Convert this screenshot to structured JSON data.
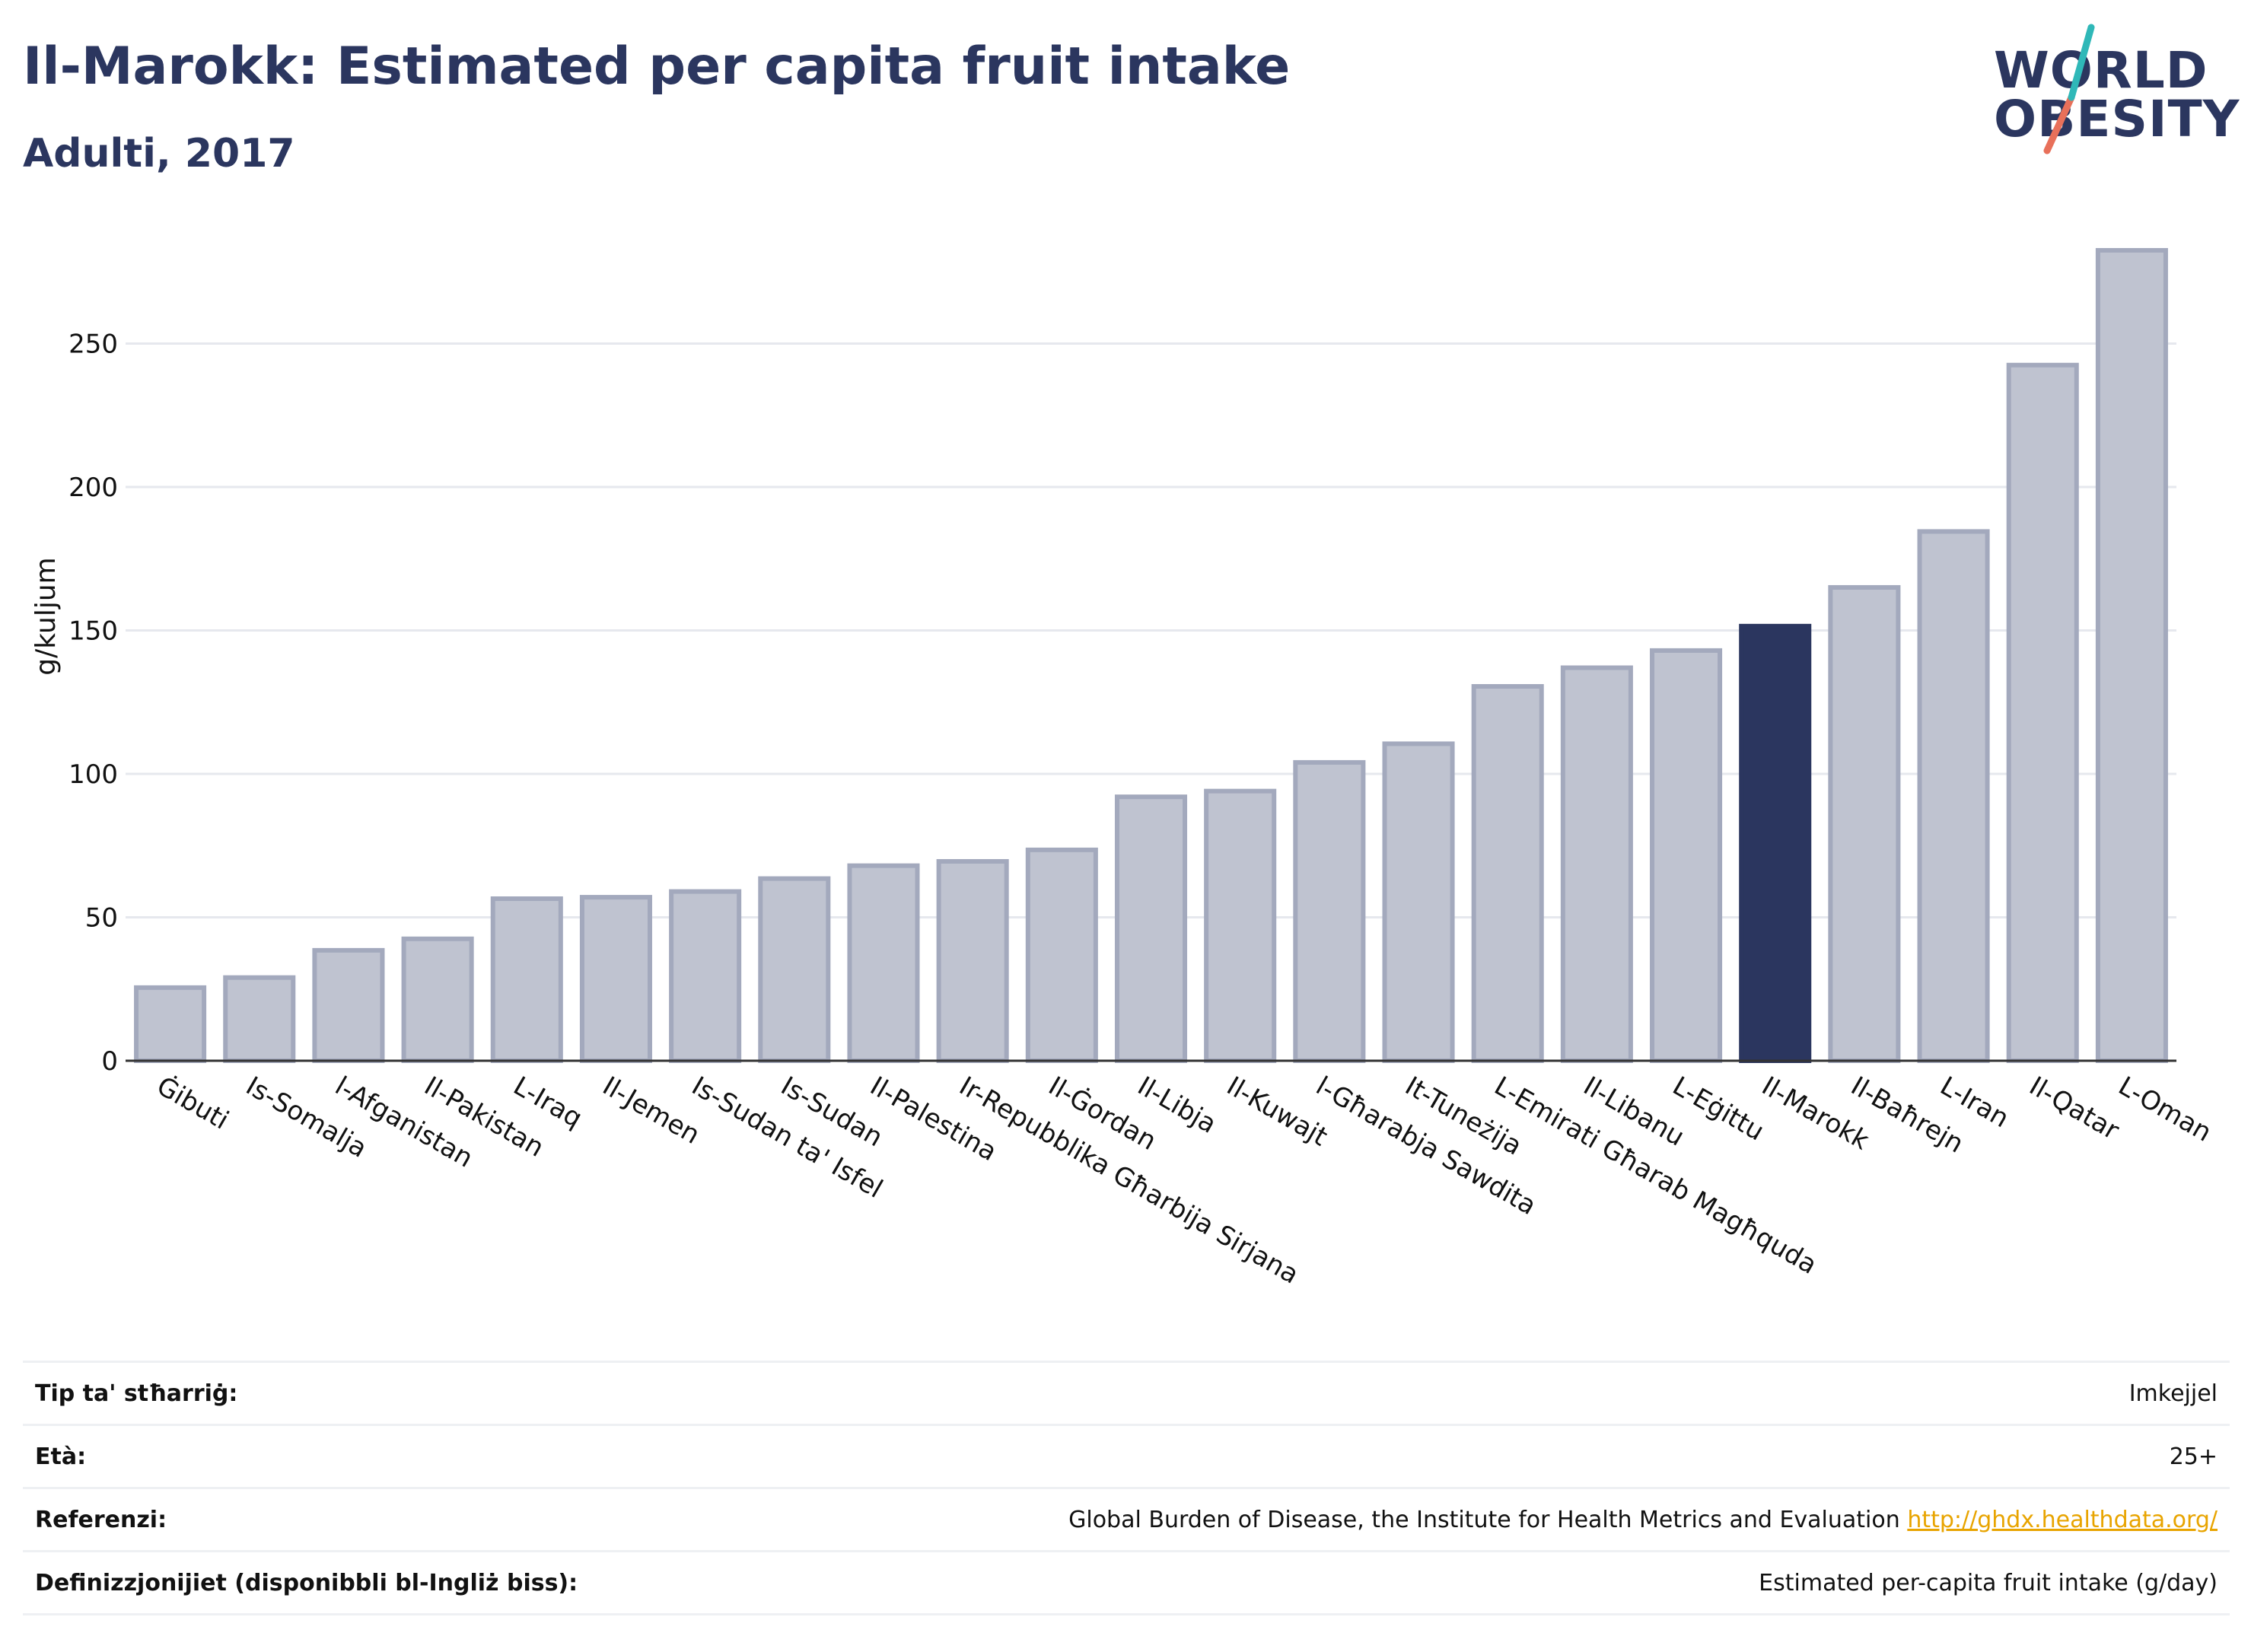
{
  "header": {
    "title": "Il-Marokk: Estimated per capita fruit intake",
    "subtitle": "Adulti, 2017"
  },
  "logo": {
    "line1": "WORLD",
    "line2": "OBESITY"
  },
  "colors": {
    "bar": "#bfc3d0",
    "bar_border": "#a3a9bd",
    "highlight": "#2b365f",
    "grid": "#e6e8ee",
    "text": "#111111",
    "link": "#e8a400",
    "logo_teal": "#2fb8b8",
    "logo_coral": "#e8705a"
  },
  "chart_data": {
    "type": "bar",
    "title": "Il-Marokk: Estimated per capita fruit intake",
    "subtitle": "Adulti, 2017",
    "ylabel": "g/kuljum",
    "xlabel": "",
    "ylim": [
      0,
      290
    ],
    "yticks": [
      0,
      50,
      100,
      150,
      200,
      250
    ],
    "grid": true,
    "highlight": "Il-Marokk",
    "categories": [
      "Ġibuti",
      "Is-Somalja",
      "l-Afganistan",
      "Il-Pakistan",
      "L-Iraq",
      "Il-Jemen",
      "Is-Sudan ta' Isfel",
      "Is-Sudan",
      "Il-Palestina",
      "Ir-Repubblika Għarbija Sirjana",
      "Il-Ġordan",
      "Il-Libja",
      "Il-Kuwajt",
      "l-Għarabja Sawdita",
      "It-Tuneżija",
      "L-Emirati Għarab Magħquda",
      "Il-Libanu",
      "L-Eġittu",
      "Il-Marokk",
      "Il-Baħrejn",
      "L-Iran",
      "Il-Qatar",
      "L-Oman"
    ],
    "values": [
      25.5,
      29,
      38.5,
      42.5,
      56.5,
      57,
      59,
      63.5,
      68,
      69.5,
      73.5,
      92,
      94,
      104,
      110.5,
      130.5,
      137,
      143,
      151.5,
      165,
      184.5,
      242.5,
      282.5
    ]
  },
  "info_table": [
    {
      "label": "Tip ta' stħarriġ:",
      "value": "Imkejjel"
    },
    {
      "label": "Età:",
      "value": "25+"
    },
    {
      "label": "Referenzi:",
      "value": "Global Burden of Disease, the Institute for Health Metrics and Evaluation",
      "link": "http://ghdx.healthdata.org/"
    },
    {
      "label": "Definizzjonijiet (disponibbli bl-Ingliż biss):",
      "value": "Estimated per-capita fruit intake (g/day)"
    }
  ]
}
